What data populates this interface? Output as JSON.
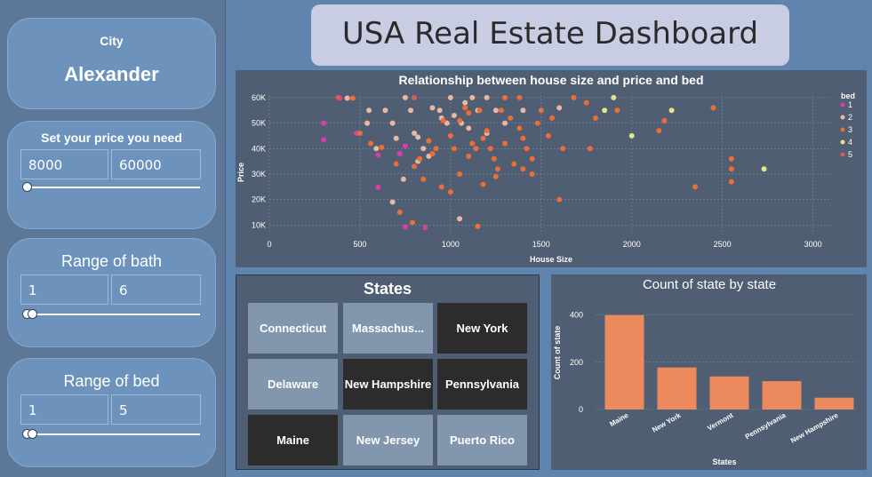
{
  "dashboard_title": "USA Real Estate Dashboard",
  "city_card": {
    "label": "City",
    "value": "Alexander"
  },
  "price_filter": {
    "title": "Set your price you need",
    "min": "8000",
    "max": "60000"
  },
  "bath_filter": {
    "title": "Range of bath",
    "min": "1",
    "max": "6"
  },
  "bed_filter": {
    "title": "Range of bed",
    "min": "1",
    "max": "5"
  },
  "states_slicer": {
    "title": "States",
    "items": [
      {
        "label": "Connecticut",
        "selected": false
      },
      {
        "label": "Massachus...",
        "selected": false
      },
      {
        "label": "New York",
        "selected": true
      },
      {
        "label": "Delaware",
        "selected": false
      },
      {
        "label": "New Hampshire",
        "selected": true
      },
      {
        "label": "Pennsylvania",
        "selected": true
      },
      {
        "label": "Maine",
        "selected": true
      },
      {
        "label": "New Jersey",
        "selected": false
      },
      {
        "label": "Puerto Rico",
        "selected": false
      }
    ]
  },
  "colors": {
    "bed_1": "#d63fa6",
    "bed_2": "#e8b9a2",
    "bed_3": "#ea6f37",
    "bed_4": "#e0e68a",
    "bed_5": "#d85a5a",
    "bar": "#ec8a5e",
    "panel_bg": "#4f5e72",
    "page_bg": "#5f84ad"
  },
  "chart_data": [
    {
      "type": "scatter",
      "title": "Relationship between house size and price and bed",
      "xlabel": "House Size",
      "ylabel": "Price",
      "xlim": [
        0,
        3100
      ],
      "ylim": [
        7000,
        61000
      ],
      "xticks": [
        0,
        500,
        1000,
        1500,
        2000,
        2500,
        3000
      ],
      "yticks": [
        10000,
        20000,
        30000,
        40000,
        50000,
        60000
      ],
      "ytick_labels": [
        "10K",
        "20K",
        "30K",
        "40K",
        "50K",
        "60K"
      ],
      "grid": true,
      "legend": {
        "title": "bed",
        "position": "right",
        "entries": [
          "1",
          "2",
          "3",
          "4",
          "5"
        ]
      },
      "series": [
        {
          "name": "1",
          "points": [
            [
              390,
              59800
            ],
            [
              300,
              50000
            ],
            [
              300,
              43500
            ],
            [
              480,
              46000
            ],
            [
              600,
              37500
            ],
            [
              600,
              24800
            ],
            [
              720,
              38000
            ],
            [
              750,
              41000
            ],
            [
              860,
              9000
            ],
            [
              750,
              9300
            ]
          ]
        },
        {
          "name": "2",
          "points": [
            [
              430,
              59800
            ],
            [
              540,
              50000
            ],
            [
              550,
              55000
            ],
            [
              590,
              40000
            ],
            [
              640,
              55000
            ],
            [
              680,
              50000
            ],
            [
              700,
              44000
            ],
            [
              740,
              28000
            ],
            [
              750,
              60000
            ],
            [
              780,
              55000
            ],
            [
              800,
              46000
            ],
            [
              820,
              44500
            ],
            [
              850,
              40000
            ],
            [
              880,
              37000
            ],
            [
              900,
              56000
            ],
            [
              940,
              55000
            ],
            [
              950,
              52000
            ],
            [
              980,
              50000
            ],
            [
              1000,
              60000
            ],
            [
              1020,
              53000
            ],
            [
              1060,
              50000
            ],
            [
              1080,
              58000
            ],
            [
              1100,
              48000
            ],
            [
              1150,
              55000
            ],
            [
              1200,
              46000
            ],
            [
              1250,
              55000
            ],
            [
              1300,
              50000
            ],
            [
              1400,
              55000
            ],
            [
              1600,
              56000
            ],
            [
              1050,
              12500
            ],
            [
              1120,
              60000
            ],
            [
              1200,
              60000
            ],
            [
              820,
              35000
            ],
            [
              680,
              19000
            ]
          ]
        },
        {
          "name": "3",
          "points": [
            [
              460,
              59800
            ],
            [
              500,
              46000
            ],
            [
              560,
              42000
            ],
            [
              620,
              40500
            ],
            [
              700,
              34000
            ],
            [
              720,
              15000
            ],
            [
              790,
              11000
            ],
            [
              800,
              33000
            ],
            [
              830,
              36000
            ],
            [
              850,
              28000
            ],
            [
              880,
              43000
            ],
            [
              900,
              38000
            ],
            [
              920,
              40000
            ],
            [
              960,
              51000
            ],
            [
              1000,
              45000
            ],
            [
              1020,
              40000
            ],
            [
              1050,
              51000
            ],
            [
              1080,
              56000
            ],
            [
              1100,
              54000
            ],
            [
              1120,
              42000
            ],
            [
              1140,
              40000
            ],
            [
              1160,
              55000
            ],
            [
              1180,
              44000
            ],
            [
              1200,
              47000
            ],
            [
              1220,
              40000
            ],
            [
              1240,
              36000
            ],
            [
              1260,
              32000
            ],
            [
              1280,
              55000
            ],
            [
              1300,
              60000
            ],
            [
              1330,
              52000
            ],
            [
              1350,
              34000
            ],
            [
              1380,
              48000
            ],
            [
              1400,
              44000
            ],
            [
              1420,
              40000
            ],
            [
              1450,
              36000
            ],
            [
              1480,
              50000
            ],
            [
              1500,
              55000
            ],
            [
              1540,
              45000
            ],
            [
              1600,
              20000
            ],
            [
              1620,
              40000
            ],
            [
              1680,
              60000
            ],
            [
              1770,
              40000
            ],
            [
              1800,
              52000
            ],
            [
              2150,
              47000
            ],
            [
              2180,
              51000
            ],
            [
              2350,
              25000
            ],
            [
              2450,
              56000
            ],
            [
              2550,
              36000
            ],
            [
              2550,
              32000
            ],
            [
              2550,
              27000
            ],
            [
              1050,
              30000
            ],
            [
              1150,
              9500
            ],
            [
              1000,
              23000
            ],
            [
              950,
              25000
            ],
            [
              1250,
              29000
            ],
            [
              1400,
              32000
            ],
            [
              1450,
              30000
            ],
            [
              1180,
              26000
            ],
            [
              1380,
              60000
            ],
            [
              1560,
              52000
            ],
            [
              1750,
              58000
            ],
            [
              1920,
              55000
            ],
            [
              1100,
              37000
            ],
            [
              1300,
              42000
            ]
          ]
        },
        {
          "name": "4",
          "points": [
            [
              1900,
              60000
            ],
            [
              1850,
              55000
            ],
            [
              2000,
              45000
            ],
            [
              2220,
              55000
            ],
            [
              2730,
              32000
            ]
          ]
        },
        {
          "name": "5",
          "points": [
            [
              380,
              60000
            ],
            [
              800,
              60000
            ]
          ]
        }
      ]
    },
    {
      "type": "bar",
      "title": "Count of state by state",
      "xlabel": "States",
      "ylabel": "Count of state",
      "categories": [
        "Maine",
        "New York",
        "Vermont",
        "Pennsylvania",
        "New Hampshire"
      ],
      "values": [
        400,
        178,
        140,
        120,
        50
      ],
      "ylim": [
        0,
        440
      ],
      "yticks": [
        0,
        200,
        400
      ],
      "grid": true
    }
  ]
}
